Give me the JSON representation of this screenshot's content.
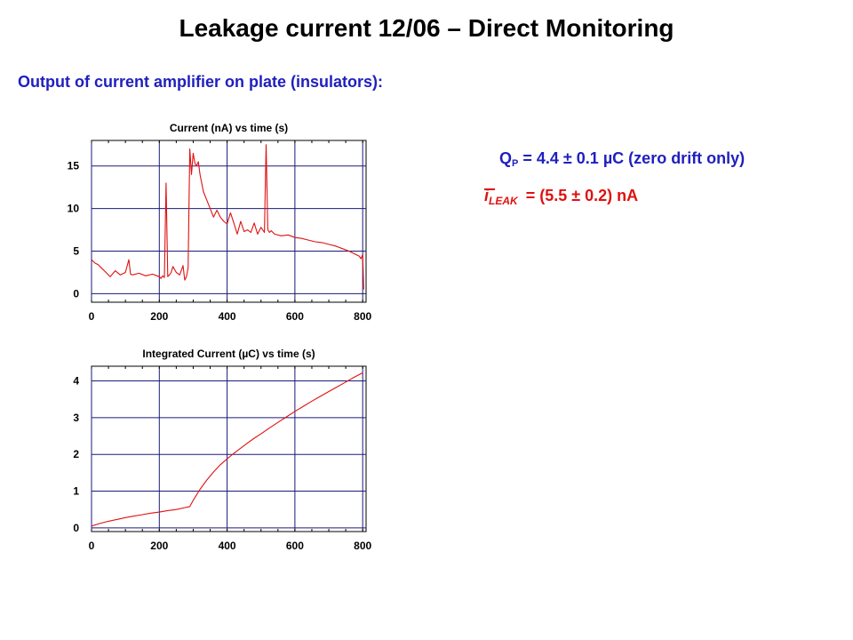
{
  "page": {
    "title": "Leakage current 12/06 – Direct Monitoring",
    "subtitle": "Output of current amplifier on plate (insulators):"
  },
  "results": {
    "charge_symbol": "Q",
    "charge_subscript": "P",
    "charge_text": "= 4.4 ± 0.1 µC (zero drift only)",
    "current_symbol": "i",
    "current_subscript": "LEAK",
    "current_text": "= (5.5 ± 0.2) nA"
  },
  "colors": {
    "title": "#000000",
    "subtitle": "#1f1fbf",
    "charge_result": "#1f1fbf",
    "current_result": "#e01010",
    "grid": "#1a1a7a",
    "series": "#e01010"
  },
  "chart_data": [
    {
      "type": "line",
      "title": "Current (nA) vs time (s)",
      "xlabel": "",
      "ylabel": "",
      "xlim": [
        0,
        810
      ],
      "ylim": [
        -1,
        18
      ],
      "xticks": [
        0,
        200,
        400,
        600,
        800
      ],
      "yticks": [
        0,
        5,
        10,
        15
      ],
      "grid": true,
      "series": [
        {
          "x": [
            0,
            10,
            20,
            30,
            40,
            55,
            70,
            85,
            100,
            110,
            115,
            120,
            140,
            160,
            180,
            200,
            205,
            210,
            215,
            220,
            225,
            230,
            235,
            240,
            250,
            260,
            270,
            275,
            280,
            285,
            290,
            295,
            300,
            305,
            310,
            315,
            320,
            330,
            340,
            350,
            360,
            370,
            380,
            390,
            400,
            410,
            420,
            430,
            440,
            450,
            460,
            470,
            480,
            490,
            500,
            510,
            515,
            520,
            525,
            530,
            540,
            560,
            580,
            600,
            620,
            640,
            660,
            680,
            700,
            720,
            740,
            760,
            780,
            790,
            795,
            800,
            803
          ],
          "y": [
            4.0,
            3.6,
            3.4,
            3.0,
            2.6,
            2.0,
            2.7,
            2.2,
            2.5,
            4.0,
            2.3,
            2.2,
            2.4,
            2.1,
            2.3,
            2.0,
            1.8,
            2.1,
            1.9,
            13.0,
            2.0,
            2.2,
            2.5,
            3.2,
            2.5,
            2.2,
            3.3,
            1.6,
            2.0,
            3.0,
            17.0,
            14.0,
            16.5,
            15.3,
            15.0,
            15.5,
            14.0,
            12.0,
            11.0,
            10.0,
            9.0,
            9.8,
            9.0,
            8.5,
            8.2,
            9.5,
            8.3,
            7.0,
            8.5,
            7.3,
            7.5,
            7.2,
            8.3,
            7.0,
            7.8,
            7.2,
            17.5,
            7.5,
            7.2,
            7.4,
            7.0,
            6.8,
            6.9,
            6.6,
            6.5,
            6.3,
            6.1,
            6.0,
            5.8,
            5.6,
            5.3,
            5.0,
            4.6,
            4.4,
            4.1,
            4.6,
            0.5
          ]
        }
      ]
    },
    {
      "type": "line",
      "title": "Integrated Current (µC) vs time (s)",
      "xlabel": "",
      "ylabel": "",
      "xlim": [
        0,
        810
      ],
      "ylim": [
        -0.1,
        4.4
      ],
      "xticks": [
        0,
        200,
        400,
        600,
        800
      ],
      "yticks": [
        0,
        1,
        2,
        3,
        4
      ],
      "grid": true,
      "series": [
        {
          "x": [
            0,
            25,
            50,
            75,
            100,
            125,
            150,
            175,
            200,
            225,
            250,
            275,
            285,
            290,
            300,
            320,
            340,
            360,
            380,
            400,
            420,
            440,
            460,
            480,
            500,
            525,
            550,
            575,
            600,
            625,
            650,
            675,
            700,
            725,
            750,
            775,
            800
          ],
          "y": [
            0.05,
            0.12,
            0.18,
            0.23,
            0.28,
            0.32,
            0.36,
            0.4,
            0.43,
            0.47,
            0.5,
            0.55,
            0.57,
            0.58,
            0.75,
            1.05,
            1.3,
            1.52,
            1.72,
            1.88,
            2.03,
            2.17,
            2.31,
            2.44,
            2.56,
            2.72,
            2.87,
            3.02,
            3.17,
            3.31,
            3.45,
            3.58,
            3.71,
            3.84,
            3.97,
            4.1,
            4.22
          ]
        }
      ]
    }
  ]
}
